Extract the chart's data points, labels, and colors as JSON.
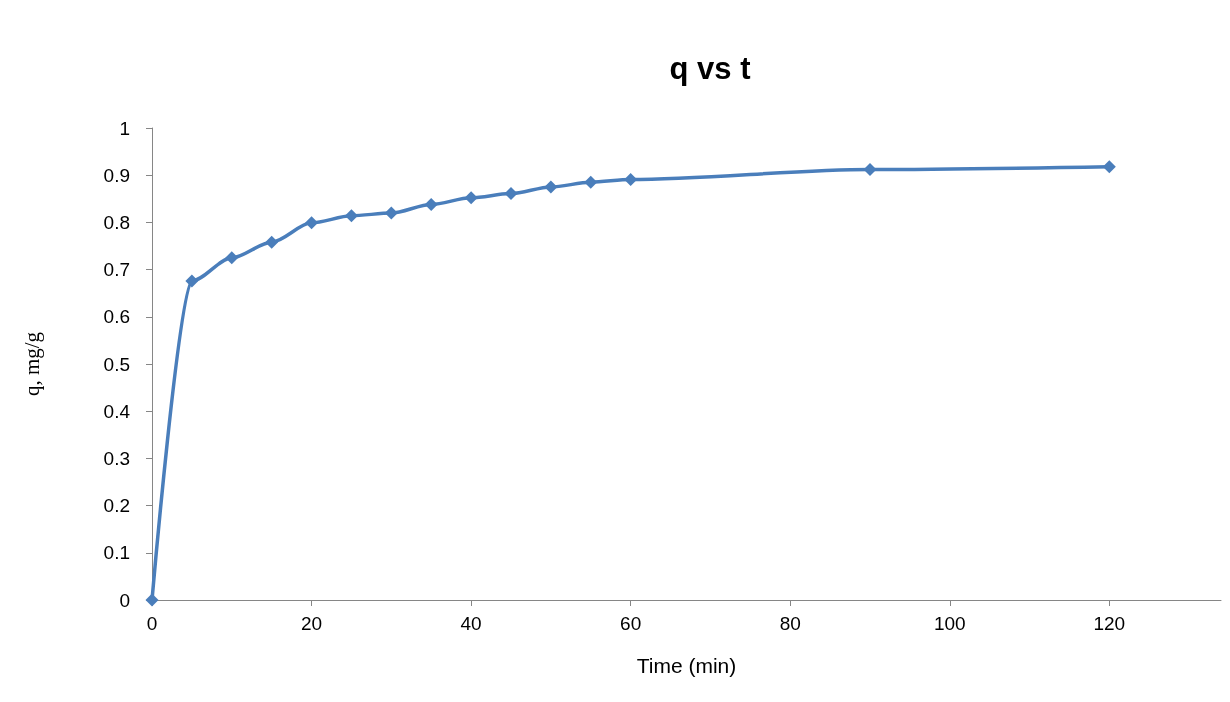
{
  "chart_data": {
    "type": "line",
    "title": "q vs t",
    "xlabel": "Time (min)",
    "ylabel": "q, mg/g",
    "x": [
      0,
      5,
      10,
      15,
      20,
      25,
      30,
      35,
      40,
      45,
      50,
      55,
      60,
      90,
      120
    ],
    "series": [
      {
        "color": "#4a7ebb",
        "values": [
          0,
          0.676,
          0.725,
          0.758,
          0.799,
          0.814,
          0.82,
          0.838,
          0.852,
          0.861,
          0.875,
          0.885,
          0.891,
          0.912,
          0.918
        ]
      }
    ],
    "xlim": [
      0,
      134
    ],
    "xticks": [
      0,
      20,
      40,
      60,
      80,
      100,
      120
    ],
    "ylim": [
      0,
      1
    ],
    "yticks": [
      0,
      0.1,
      0.2,
      0.3,
      0.4,
      0.5,
      0.6,
      0.7,
      0.8,
      0.9,
      1
    ],
    "grid": false,
    "marker": "diamond",
    "line_style": "solid"
  }
}
